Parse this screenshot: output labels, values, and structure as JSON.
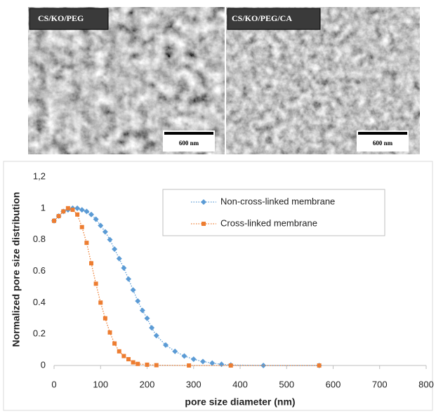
{
  "images": [
    {
      "label": "CS/KO/PEG",
      "scale_bar": "600 nm"
    },
    {
      "label": "CS/KO/PEG/CA",
      "scale_bar": "600 nm"
    }
  ],
  "chart_data": {
    "type": "line",
    "x_label": "pore size diameter (nm)",
    "y_label": "Normalized pore size distribution",
    "xlim": [
      0,
      800
    ],
    "xticks": [
      0,
      100,
      200,
      300,
      400,
      500,
      600,
      700,
      800
    ],
    "ylim": [
      0,
      1.2
    ],
    "yticks": [
      0,
      0.2,
      0.4,
      0.6,
      0.8,
      1,
      {
        "value": 1.2,
        "label": "1,2"
      }
    ],
    "legend": "top-right",
    "series": [
      {
        "name": "Non-cross-linked membrane",
        "color": "#5b9bd5",
        "marker": "diamond",
        "x": [
          0,
          10,
          20,
          30,
          40,
          50,
          60,
          70,
          80,
          90,
          100,
          110,
          120,
          130,
          140,
          150,
          160,
          170,
          180,
          190,
          200,
          210,
          220,
          240,
          260,
          280,
          300,
          320,
          340,
          360,
          380,
          450,
          570
        ],
        "values": [
          0.92,
          0.95,
          0.98,
          0.99,
          1.0,
          1.0,
          0.99,
          0.98,
          0.96,
          0.93,
          0.89,
          0.85,
          0.8,
          0.74,
          0.68,
          0.62,
          0.55,
          0.48,
          0.41,
          0.35,
          0.3,
          0.24,
          0.19,
          0.13,
          0.09,
          0.06,
          0.04,
          0.025,
          0.015,
          0.008,
          0.003,
          0,
          0
        ]
      },
      {
        "name": "Cross-linked membrane",
        "color": "#ed7d31",
        "marker": "square",
        "x": [
          0,
          10,
          20,
          30,
          40,
          50,
          60,
          70,
          80,
          90,
          100,
          110,
          120,
          130,
          140,
          150,
          160,
          170,
          180,
          200,
          220,
          290,
          380,
          570
        ],
        "values": [
          0.92,
          0.95,
          0.98,
          1.0,
          0.99,
          0.96,
          0.88,
          0.78,
          0.65,
          0.52,
          0.4,
          0.3,
          0.21,
          0.14,
          0.09,
          0.06,
          0.04,
          0.02,
          0.01,
          0.005,
          0.002,
          0,
          0,
          0
        ]
      }
    ]
  }
}
